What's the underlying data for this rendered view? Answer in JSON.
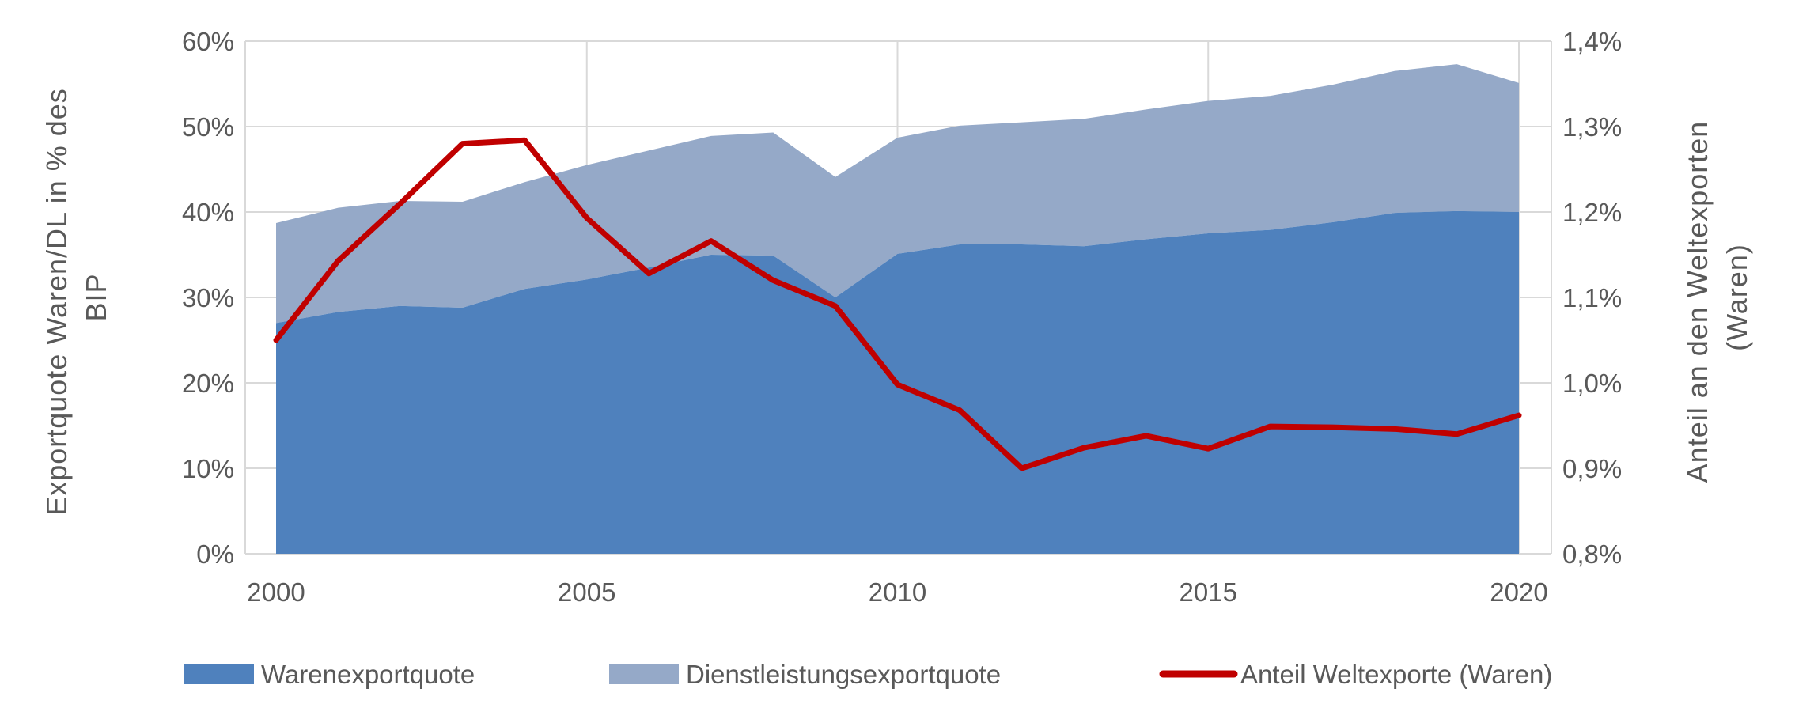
{
  "chart_data": {
    "type": "area",
    "x": [
      2000,
      2001,
      2002,
      2003,
      2004,
      2005,
      2006,
      2007,
      2008,
      2009,
      2010,
      2011,
      2012,
      2013,
      2014,
      2015,
      2016,
      2017,
      2018,
      2019,
      2020
    ],
    "x_ticks": [
      "2000",
      "2005",
      "2010",
      "2015",
      "2020"
    ],
    "series": [
      {
        "name": "Warenexportquote",
        "type": "stacked-area",
        "axis": "left",
        "color": "#4f81bd",
        "values": [
          27.0,
          28.3,
          29.0,
          28.8,
          31.0,
          32.1,
          33.5,
          35.0,
          34.9,
          30.0,
          35.1,
          36.2,
          36.2,
          36.0,
          36.8,
          37.5,
          37.9,
          38.8,
          39.9,
          40.1,
          40.0
        ]
      },
      {
        "name": "Dienstleistungsexportquote",
        "type": "stacked-area",
        "axis": "left",
        "color": "#95a9c8",
        "values": [
          11.7,
          12.2,
          12.3,
          12.4,
          12.5,
          13.4,
          13.7,
          13.9,
          14.4,
          14.1,
          13.6,
          13.9,
          14.3,
          14.9,
          15.2,
          15.5,
          15.7,
          16.1,
          16.6,
          17.2,
          15.1
        ]
      },
      {
        "name": "Anteil Weltexporte (Waren)",
        "type": "line",
        "axis": "right",
        "color": "#c00000",
        "values": [
          1.05,
          1.143,
          1.21,
          1.28,
          1.284,
          1.193,
          1.128,
          1.166,
          1.12,
          1.09,
          0.998,
          0.968,
          0.9,
          0.924,
          0.938,
          0.923,
          0.949,
          0.948,
          0.946,
          0.94,
          0.962
        ]
      }
    ],
    "ylim": [
      0,
      60
    ],
    "y_ticks": [
      "0%",
      "10%",
      "20%",
      "30%",
      "40%",
      "50%",
      "60%"
    ],
    "ylabel_lines": [
      "Exportquote Waren/DL in % des",
      "BIP"
    ],
    "y2lim": [
      0.8,
      1.4
    ],
    "y2_ticks": [
      "0,8%",
      "0,9%",
      "1,0%",
      "1,1%",
      "1,2%",
      "1,3%",
      "1,4%"
    ],
    "y2label_lines": [
      "Anteil an den Weltexporten",
      "(Waren)"
    ],
    "grid": true,
    "legend_position": "bottom"
  }
}
